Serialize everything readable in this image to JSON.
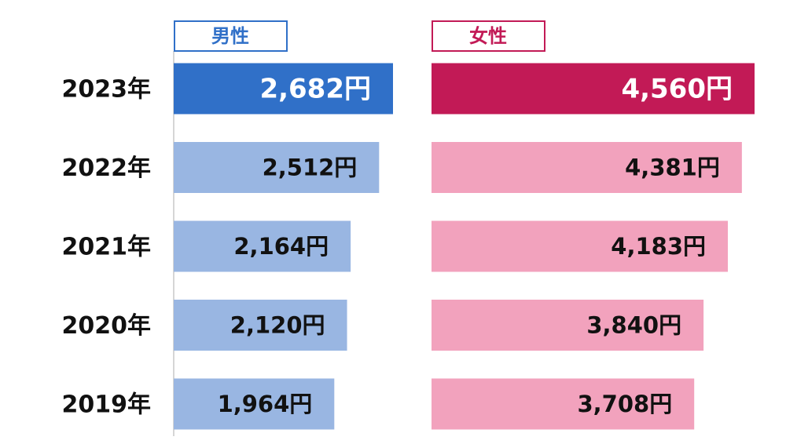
{
  "chart_data": {
    "type": "bar",
    "orientation": "horizontal",
    "categories": [
      "2023年",
      "2022年",
      "2021年",
      "2020年",
      "2019年"
    ],
    "series": [
      {
        "name": "男性",
        "color": "#3070c8",
        "colors": [
          "#3070c8",
          "#99b6e2",
          "#99b6e2",
          "#99b6e2",
          "#99b6e2"
        ],
        "label_colors": [
          "#ffffff",
          "#111111",
          "#111111",
          "#111111",
          "#111111"
        ],
        "values": [
          2682,
          2512,
          2164,
          2120,
          1964
        ],
        "value_labels": [
          "2,682円",
          "2,512円",
          "2,164円",
          "2,120円",
          "1,964円"
        ]
      },
      {
        "name": "女性",
        "color": "#c21a56",
        "colors": [
          "#c21a56",
          "#f2a2bd",
          "#f2a2bd",
          "#f2a2bd",
          "#f2a2bd"
        ],
        "label_colors": [
          "#ffffff",
          "#111111",
          "#111111",
          "#111111",
          "#111111"
        ],
        "values": [
          4560,
          4381,
          4183,
          3840,
          3708
        ],
        "value_labels": [
          "4,560円",
          "4,381円",
          "4,183円",
          "3,840円",
          "3,708円"
        ]
      }
    ]
  }
}
